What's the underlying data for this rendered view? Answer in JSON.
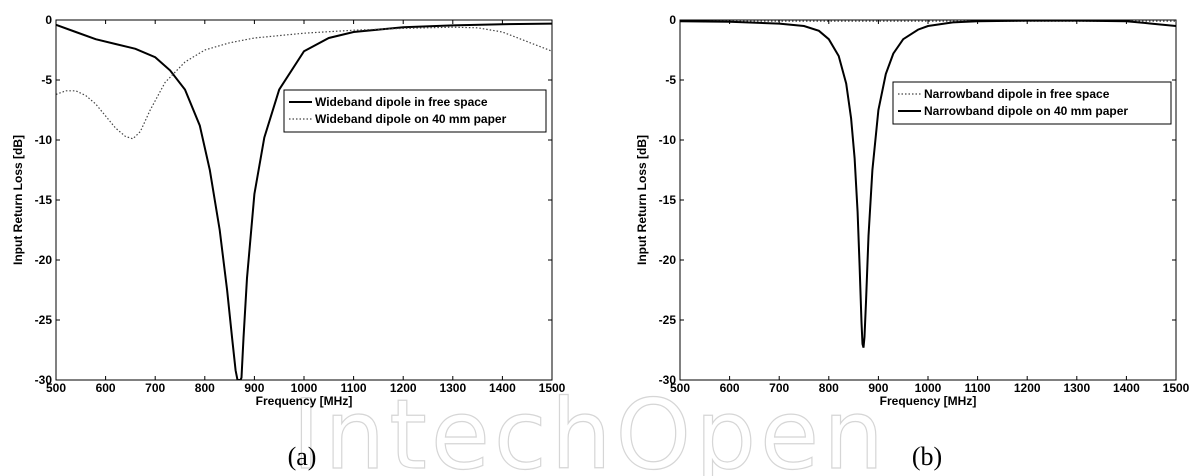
{
  "watermark": "IntechOpen",
  "chart_data": [
    {
      "type": "line",
      "panel_caption": "(a)",
      "xlabel": "Frequency [MHz]",
      "ylabel": "Input Return Loss [dB]",
      "xlim": [
        500,
        1500
      ],
      "ylim": [
        -30,
        0
      ],
      "xticks": [
        500,
        600,
        700,
        800,
        900,
        1000,
        1100,
        1200,
        1300,
        1400,
        1500
      ],
      "yticks": [
        0,
        -5,
        -10,
        -15,
        -20,
        -25,
        -30
      ],
      "grid": false,
      "legend_position": "upper-right",
      "series": [
        {
          "name": "Wideband dipole in free space",
          "style": "solid",
          "color": "#000000",
          "x": [
            500,
            540,
            580,
            620,
            660,
            700,
            730,
            760,
            790,
            810,
            830,
            845,
            855,
            862,
            866,
            868,
            870,
            872,
            874,
            878,
            885,
            900,
            920,
            950,
            1000,
            1050,
            1100,
            1150,
            1200,
            1300,
            1400,
            1500
          ],
          "y": [
            -0.4,
            -1.0,
            -1.6,
            -2.0,
            -2.4,
            -3.1,
            -4.2,
            -5.8,
            -8.8,
            -12.5,
            -17.5,
            -22.5,
            -26.5,
            -29.2,
            -30,
            -30,
            -30,
            -30,
            -29.8,
            -26.5,
            -21.5,
            -14.5,
            -9.8,
            -5.8,
            -2.6,
            -1.5,
            -1.0,
            -0.8,
            -0.6,
            -0.45,
            -0.35,
            -0.3
          ]
        },
        {
          "name": "Wideband dipole on 40 mm paper",
          "style": "dotted",
          "color": "#444444",
          "x": [
            500,
            520,
            540,
            560,
            580,
            600,
            620,
            640,
            655,
            670,
            690,
            720,
            760,
            800,
            850,
            900,
            1000,
            1100,
            1200,
            1300,
            1350,
            1400,
            1450,
            1500
          ],
          "y": [
            -6.2,
            -5.9,
            -5.9,
            -6.3,
            -7.0,
            -8.0,
            -9.0,
            -9.7,
            -9.9,
            -9.3,
            -7.5,
            -5.2,
            -3.5,
            -2.5,
            -1.9,
            -1.5,
            -1.1,
            -0.85,
            -0.7,
            -0.6,
            -0.65,
            -1.0,
            -1.8,
            -2.6
          ]
        }
      ]
    },
    {
      "type": "line",
      "panel_caption": "(b)",
      "xlabel": "Frequency [MHz]",
      "ylabel": "Input Return Loss [dB]",
      "xlim": [
        500,
        1500
      ],
      "ylim": [
        -30,
        0
      ],
      "xticks": [
        500,
        600,
        700,
        800,
        900,
        1000,
        1100,
        1200,
        1300,
        1400,
        1500
      ],
      "yticks": [
        0,
        -5,
        -10,
        -15,
        -20,
        -25,
        -30
      ],
      "grid": false,
      "legend_position": "upper-right",
      "series": [
        {
          "name": "Narrowband dipole in free space",
          "style": "dotted",
          "color": "#444444",
          "x": [
            500,
            700,
            900,
            1100,
            1300,
            1500
          ],
          "y": [
            -0.1,
            -0.1,
            -0.1,
            -0.1,
            -0.1,
            -0.1
          ]
        },
        {
          "name": "Narrowband dipole on 40 mm paper",
          "style": "solid",
          "color": "#000000",
          "x": [
            500,
            600,
            700,
            750,
            780,
            800,
            820,
            835,
            845,
            852,
            858,
            862,
            866,
            868,
            870,
            872,
            875,
            880,
            888,
            900,
            915,
            930,
            950,
            980,
            1000,
            1050,
            1100,
            1200,
            1300,
            1400,
            1450,
            1500
          ],
          "y": [
            -0.1,
            -0.15,
            -0.3,
            -0.5,
            -0.9,
            -1.6,
            -3.0,
            -5.3,
            -8.2,
            -11.5,
            -16.0,
            -20.5,
            -25.2,
            -27.0,
            -27.3,
            -26.4,
            -23.5,
            -18.0,
            -12.5,
            -7.5,
            -4.5,
            -2.8,
            -1.6,
            -0.8,
            -0.5,
            -0.2,
            -0.1,
            -0.05,
            -0.05,
            -0.1,
            -0.3,
            -0.5
          ]
        }
      ]
    }
  ]
}
